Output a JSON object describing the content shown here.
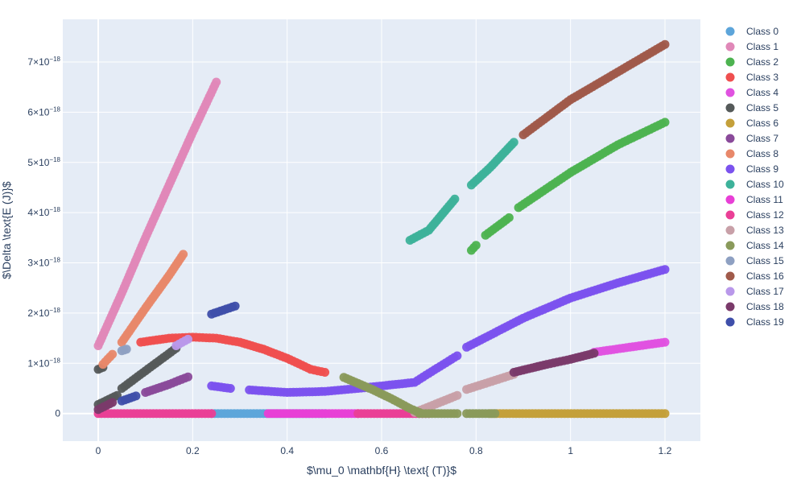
{
  "chart_data": {
    "type": "scatter",
    "xlabel": "$\\mu_0 \\mathbf{H} \\text{ (T)}$",
    "ylabel": "$\\Delta \\text{E (J)}$",
    "xlim": [
      -0.075,
      1.275
    ],
    "ylim": [
      -5.5e-19,
      7.85e-18
    ],
    "x_ticks": [
      {
        "v": 0,
        "label": "0"
      },
      {
        "v": 0.2,
        "label": "0.2"
      },
      {
        "v": 0.4,
        "label": "0.4"
      },
      {
        "v": 0.6,
        "label": "0.6"
      },
      {
        "v": 0.8,
        "label": "0.8"
      },
      {
        "v": 1,
        "label": "1"
      },
      {
        "v": 1.2,
        "label": "1.2"
      }
    ],
    "y_ticks": [
      {
        "v": 0,
        "base": "0",
        "exp": ""
      },
      {
        "v": 1e-18,
        "base": "1×10",
        "exp": "−18"
      },
      {
        "v": 2e-18,
        "base": "2×10",
        "exp": "−18"
      },
      {
        "v": 3e-18,
        "base": "3×10",
        "exp": "−18"
      },
      {
        "v": 4e-18,
        "base": "4×10",
        "exp": "−18"
      },
      {
        "v": 5e-18,
        "base": "5×10",
        "exp": "−18"
      },
      {
        "v": 6e-18,
        "base": "6×10",
        "exp": "−18"
      },
      {
        "v": 7e-18,
        "base": "7×10",
        "exp": "−18"
      }
    ],
    "grid": true,
    "legend_position": "right",
    "series": [
      {
        "name": "Class 0",
        "color": "#5DA5DA",
        "segments": [
          [
            [
              0.24,
              0
            ],
            [
              0.48,
              0
            ]
          ]
        ]
      },
      {
        "name": "Class 1",
        "color": "#E088B8",
        "segments": [
          [
            [
              0.0,
              1.35e-18
            ],
            [
              0.05,
              2.4e-18
            ],
            [
              0.1,
              3.5e-18
            ],
            [
              0.15,
              4.55e-18
            ],
            [
              0.2,
              5.6e-18
            ],
            [
              0.25,
              6.6e-18
            ]
          ]
        ]
      },
      {
        "name": "Class 2",
        "color": "#4DB350",
        "segments": [
          [
            [
              0.79,
              3.25e-18
            ],
            [
              0.8,
              3.35e-18
            ]
          ],
          [
            [
              0.82,
              3.55e-18
            ],
            [
              0.87,
              3.9e-18
            ]
          ],
          [
            [
              0.89,
              4.1e-18
            ],
            [
              1.0,
              4.8e-18
            ],
            [
              1.1,
              5.35e-18
            ],
            [
              1.2,
              5.8e-18
            ]
          ]
        ]
      },
      {
        "name": "Class 3",
        "color": "#EF4F4F",
        "segments": [
          [
            [
              0.09,
              1.42e-18
            ],
            [
              0.15,
              1.5e-18
            ],
            [
              0.2,
              1.52e-18
            ],
            [
              0.25,
              1.5e-18
            ],
            [
              0.3,
              1.42e-18
            ],
            [
              0.35,
              1.28e-18
            ],
            [
              0.4,
              1.1e-18
            ],
            [
              0.45,
              8.8e-19
            ],
            [
              0.48,
              8.2e-19
            ]
          ]
        ]
      },
      {
        "name": "Class 4",
        "color": "#E052E0",
        "segments": [
          [
            [
              1.05,
              1.22e-18
            ],
            [
              1.2,
              1.42e-18
            ]
          ]
        ]
      },
      {
        "name": "Class 5",
        "color": "#555A5A",
        "segments": [
          [
            [
              0.0,
              1.8e-19
            ],
            [
              0.04,
              3.6e-19
            ]
          ],
          [
            [
              0.05,
              5e-19
            ],
            [
              0.1,
              8.5e-19
            ],
            [
              0.165,
              1.3e-18
            ]
          ],
          [
            [
              0.0,
              8.8e-19
            ],
            [
              0.01,
              9.2e-19
            ]
          ]
        ]
      },
      {
        "name": "Class 6",
        "color": "#C4A03A",
        "segments": [
          [
            [
              0.83,
              0
            ],
            [
              1.2,
              0
            ]
          ]
        ]
      },
      {
        "name": "Class 7",
        "color": "#8A4A9A",
        "segments": [
          [
            [
              0.1,
              4.2e-19
            ],
            [
              0.15,
              5.8e-19
            ],
            [
              0.19,
              7.3e-19
            ]
          ]
        ]
      },
      {
        "name": "Class 8",
        "color": "#E8886A",
        "segments": [
          [
            [
              0.01,
              9.8e-19
            ],
            [
              0.03,
              1.18e-18
            ]
          ],
          [
            [
              0.05,
              1.42e-18
            ],
            [
              0.1,
              2.1e-18
            ],
            [
              0.15,
              2.75e-18
            ],
            [
              0.18,
              3.17e-18
            ]
          ]
        ]
      },
      {
        "name": "Class 9",
        "color": "#7B52EE",
        "segments": [
          [
            [
              0.24,
              5.5e-19
            ],
            [
              0.28,
              5e-19
            ]
          ],
          [
            [
              0.32,
              4.7e-19
            ],
            [
              0.4,
              4.2e-19
            ],
            [
              0.48,
              4.4e-19
            ],
            [
              0.55,
              5e-19
            ],
            [
              0.67,
              6.2e-19
            ],
            [
              0.7,
              8e-19
            ],
            [
              0.76,
              1.15e-18
            ]
          ],
          [
            [
              0.78,
              1.32e-18
            ],
            [
              0.9,
              1.9e-18
            ],
            [
              1.0,
              2.3e-18
            ],
            [
              1.1,
              2.6e-18
            ],
            [
              1.2,
              2.87e-18
            ]
          ]
        ]
      },
      {
        "name": "Class 10",
        "color": "#3DB29A",
        "segments": [
          [
            [
              0.66,
              3.45e-18
            ],
            [
              0.7,
              3.65e-18
            ],
            [
              0.755,
              4.27e-18
            ]
          ],
          [
            [
              0.79,
              4.55e-18
            ],
            [
              0.83,
              4.9e-18
            ],
            [
              0.88,
              5.4e-18
            ]
          ]
        ]
      },
      {
        "name": "Class 11",
        "color": "#E83FD6",
        "segments": [
          [
            [
              0.36,
              0
            ],
            [
              0.55,
              0
            ]
          ]
        ]
      },
      {
        "name": "Class 12",
        "color": "#EA3F96",
        "segments": [
          [
            [
              0.0,
              0
            ],
            [
              0.24,
              0
            ]
          ],
          [
            [
              0.55,
              0
            ],
            [
              0.7,
              0
            ]
          ]
        ]
      },
      {
        "name": "Class 13",
        "color": "#C8A0A8",
        "segments": [
          [
            [
              0.67,
              2e-20
            ],
            [
              0.76,
              3.6e-19
            ]
          ],
          [
            [
              0.78,
              4.8e-19
            ],
            [
              0.88,
              7.8e-19
            ]
          ]
        ]
      },
      {
        "name": "Class 14",
        "color": "#8A9A5B",
        "segments": [
          [
            [
              0.52,
              7.2e-19
            ],
            [
              0.58,
              4.8e-19
            ],
            [
              0.62,
              3e-19
            ],
            [
              0.66,
              1e-19
            ],
            [
              0.68,
              2e-20
            ]
          ],
          [
            [
              0.68,
              0
            ],
            [
              0.76,
              0
            ]
          ],
          [
            [
              0.78,
              0
            ],
            [
              0.84,
              0
            ]
          ]
        ]
      },
      {
        "name": "Class 15",
        "color": "#8EA0C2",
        "segments": [
          [
            [
              0.05,
              1.25e-18
            ],
            [
              0.06,
              1.28e-18
            ]
          ]
        ]
      },
      {
        "name": "Class 16",
        "color": "#A05A4A",
        "segments": [
          [
            [
              0.9,
              5.55e-18
            ],
            [
              0.95,
              5.9e-18
            ],
            [
              1.0,
              6.25e-18
            ],
            [
              1.1,
              6.8e-18
            ],
            [
              1.2,
              7.35e-18
            ]
          ]
        ]
      },
      {
        "name": "Class 17",
        "color": "#B998EA",
        "segments": [
          [
            [
              0.165,
              1.35e-18
            ],
            [
              0.19,
              1.48e-18
            ]
          ]
        ]
      },
      {
        "name": "Class 18",
        "color": "#7A3A6A",
        "segments": [
          [
            [
              0.88,
              8.2e-19
            ],
            [
              0.95,
              9.8e-19
            ],
            [
              1.0,
              1.08e-18
            ],
            [
              1.05,
              1.2e-18
            ]
          ],
          [
            [
              0.0,
              8e-20
            ],
            [
              0.03,
              2.2e-19
            ]
          ]
        ]
      },
      {
        "name": "Class 19",
        "color": "#3F4FAA",
        "segments": [
          [
            [
              0.24,
              1.98e-18
            ],
            [
              0.29,
              2.14e-18
            ]
          ],
          [
            [
              0.05,
              2.5e-19
            ],
            [
              0.08,
              3.5e-19
            ]
          ]
        ]
      }
    ]
  }
}
